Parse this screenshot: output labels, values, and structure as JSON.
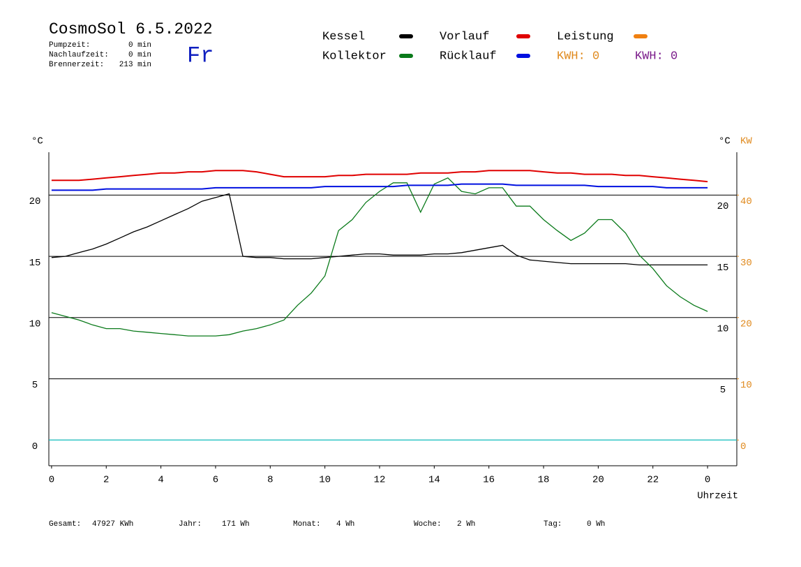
{
  "header": {
    "title": "CosmoSol 6.5.2022",
    "day": "Fr",
    "stats": [
      {
        "label": "Pumpzeit:",
        "value": "0 min"
      },
      {
        "label": "Nachlaufzeit:",
        "value": "0 min"
      },
      {
        "label": "Brennerzeit:",
        "value": "213 min"
      }
    ]
  },
  "footer": {
    "totals": [
      {
        "label": "Gesamt:",
        "value": "47927 KWh"
      },
      {
        "label": "Jahr:",
        "value": "171 Wh"
      },
      {
        "label": "Monat:",
        "value": "4 Wh"
      },
      {
        "label": "Woche:",
        "value": "2 Wh"
      },
      {
        "label": "Tag:",
        "value": "0 Wh"
      }
    ]
  },
  "chart_data": {
    "type": "line",
    "y_label": "°C",
    "y2_label": "°C",
    "y2_unit_label": "KW",
    "x_label": "Uhrzeit",
    "x": [
      0,
      0.5,
      1,
      1.5,
      2,
      2.5,
      3,
      3.5,
      4,
      4.5,
      5,
      5.5,
      6,
      6.5,
      7,
      7.5,
      8,
      8.5,
      9,
      9.5,
      10,
      10.5,
      11,
      11.5,
      12,
      12.5,
      13,
      13.5,
      14,
      14.5,
      15,
      15.5,
      16,
      16.5,
      17,
      17.5,
      18,
      18.5,
      19,
      19.5,
      20,
      20.5,
      21,
      21.5,
      22,
      22.5,
      23,
      23.5,
      24
    ],
    "xlim": [
      -0.1,
      25.07
    ],
    "xticks": [
      0,
      2,
      4,
      6,
      8,
      10,
      12,
      14,
      16,
      18,
      20,
      22,
      {
        "value": 24,
        "label": "0"
      }
    ],
    "ylim": [
      -2.1,
      23.5
    ],
    "yticks": [
      0,
      5,
      10,
      15,
      20
    ],
    "y2lim": [
      -4.2,
      47
    ],
    "y2ticks": [
      0,
      10,
      20,
      30,
      40
    ],
    "y2_color": "#e08a1e",
    "grid": true,
    "series": [
      {
        "name": "Kessel",
        "color": "#000000",
        "values": [
          14.9,
          15.0,
          15.3,
          15.6,
          16.0,
          16.5,
          17.0,
          17.4,
          17.9,
          18.4,
          18.9,
          19.5,
          19.8,
          20.1,
          15.0,
          14.9,
          14.9,
          14.8,
          14.8,
          14.8,
          14.9,
          15.0,
          15.1,
          15.2,
          15.2,
          15.1,
          15.1,
          15.1,
          15.2,
          15.2,
          15.3,
          15.5,
          15.7,
          15.9,
          15.1,
          14.7,
          14.6,
          14.5,
          14.4,
          14.4,
          14.4,
          14.4,
          14.4,
          14.3,
          14.3,
          14.3,
          14.3,
          14.3,
          14.3
        ]
      },
      {
        "name": "Kollektor",
        "color": "#0a7a1a",
        "values": [
          10.4,
          10.1,
          9.8,
          9.4,
          9.1,
          9.1,
          8.9,
          8.8,
          8.7,
          8.6,
          8.5,
          8.5,
          8.5,
          8.6,
          8.9,
          9.1,
          9.4,
          9.8,
          11.0,
          12.0,
          13.4,
          17.1,
          18.0,
          19.4,
          20.3,
          21.0,
          21.0,
          18.6,
          20.9,
          21.4,
          20.3,
          20.1,
          20.6,
          20.6,
          19.1,
          19.1,
          18.0,
          17.1,
          16.3,
          16.9,
          18.0,
          18.0,
          16.9,
          15.1,
          14.0,
          12.6,
          11.7,
          11.0,
          10.5
        ]
      },
      {
        "name": "Vorlauf",
        "color": "#e00000",
        "values": [
          21.2,
          21.2,
          21.2,
          21.3,
          21.4,
          21.5,
          21.6,
          21.7,
          21.8,
          21.8,
          21.9,
          21.9,
          22.0,
          22.0,
          22.0,
          21.9,
          21.7,
          21.5,
          21.5,
          21.5,
          21.5,
          21.6,
          21.6,
          21.7,
          21.7,
          21.7,
          21.7,
          21.8,
          21.8,
          21.8,
          21.9,
          21.9,
          22.0,
          22.0,
          22.0,
          22.0,
          21.9,
          21.8,
          21.8,
          21.7,
          21.7,
          21.7,
          21.6,
          21.6,
          21.5,
          21.4,
          21.3,
          21.2,
          21.1
        ]
      },
      {
        "name": "Rücklauf",
        "color": "#0010e0",
        "values": [
          20.4,
          20.4,
          20.4,
          20.4,
          20.5,
          20.5,
          20.5,
          20.5,
          20.5,
          20.5,
          20.5,
          20.5,
          20.6,
          20.6,
          20.6,
          20.6,
          20.6,
          20.6,
          20.6,
          20.6,
          20.7,
          20.7,
          20.7,
          20.7,
          20.7,
          20.7,
          20.8,
          20.8,
          20.8,
          20.8,
          20.9,
          20.9,
          20.9,
          20.9,
          20.8,
          20.8,
          20.8,
          20.8,
          20.8,
          20.8,
          20.7,
          20.7,
          20.7,
          20.7,
          20.7,
          20.6,
          20.6,
          20.6,
          20.6
        ]
      }
    ],
    "extra_legend": [
      {
        "name": "Leistung",
        "color": "#f08010"
      }
    ],
    "kwh_labels": [
      {
        "text": "KWH: 0",
        "color": "#e08a1e"
      },
      {
        "text": "KWH: 0",
        "color": "#7a1a8a"
      }
    ]
  }
}
